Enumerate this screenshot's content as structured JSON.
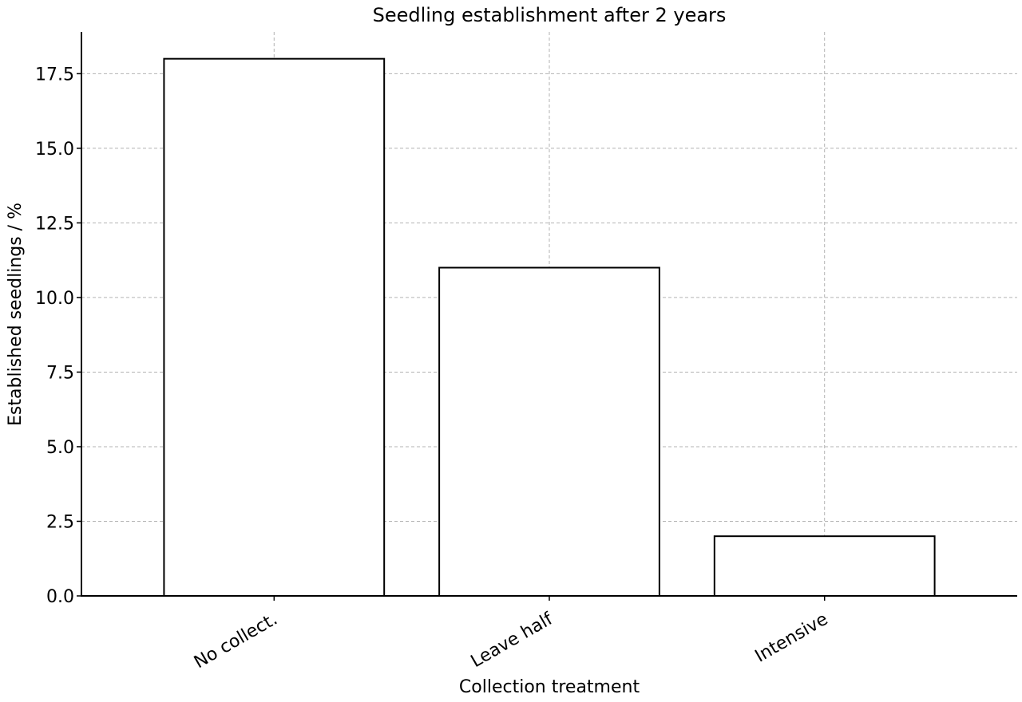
{
  "chart_data": {
    "type": "bar",
    "title": "Seedling establishment after 2 years",
    "xlabel": "Collection treatment",
    "ylabel": "Established seedlings / %",
    "categories": [
      "No collect.",
      "Leave half",
      "Intensive"
    ],
    "values": [
      18,
      11,
      2
    ],
    "ylim": [
      0,
      18.9
    ],
    "yticks": [
      0,
      2.5,
      5,
      7.5,
      10,
      12.5,
      15,
      17.5
    ],
    "ytick_labels": [
      "0.0",
      "2.5",
      "5.0",
      "7.5",
      "10.0",
      "12.5",
      "15.0",
      "17.5"
    ],
    "grid": true,
    "bar_fill": "#ffffff",
    "bar_edge": "#000000",
    "grid_color": "#b3b3b3"
  }
}
